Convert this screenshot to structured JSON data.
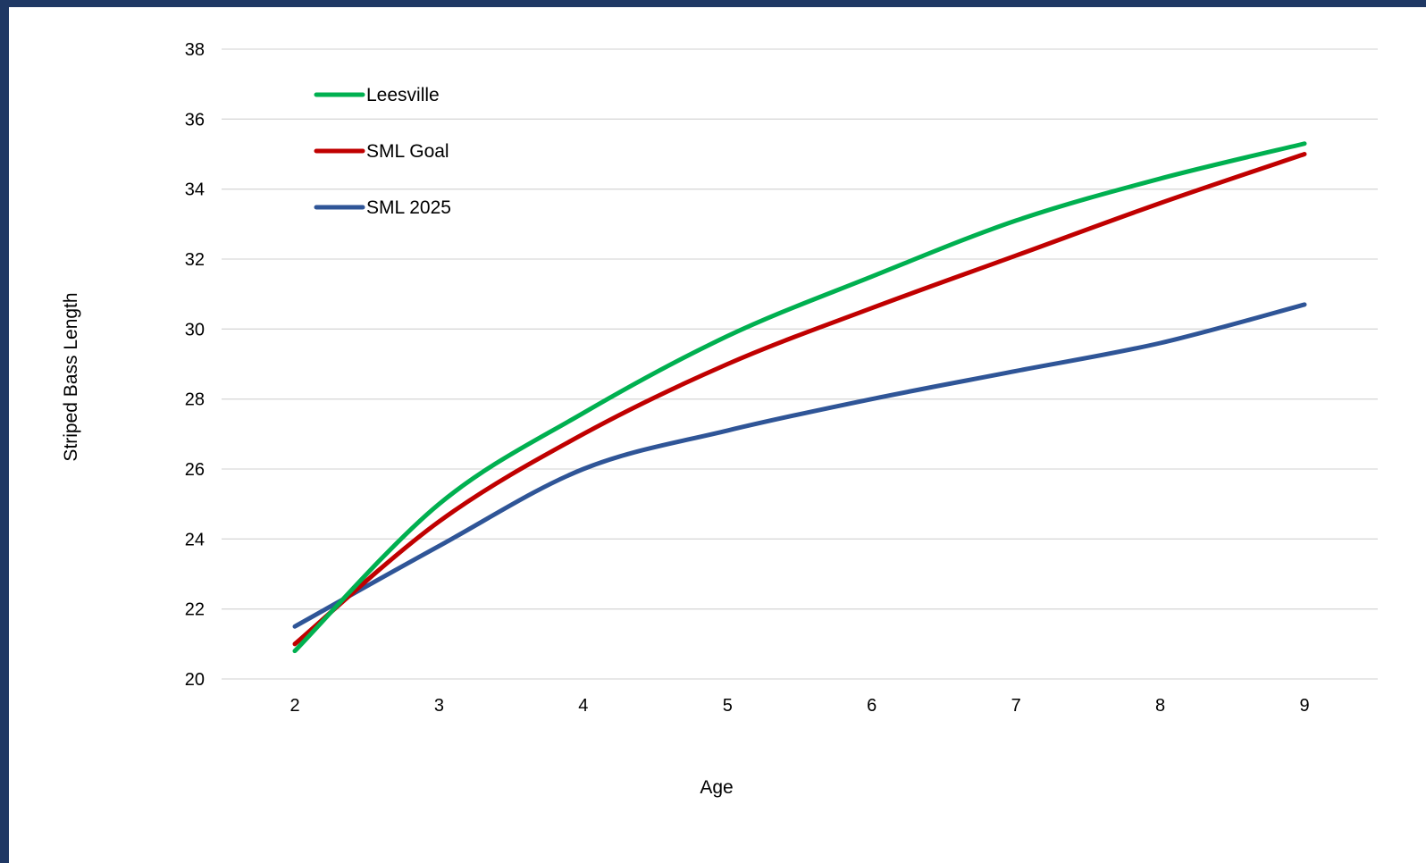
{
  "chart_data": {
    "type": "line",
    "title": "",
    "xlabel": "Age",
    "ylabel": "Striped Bass Length",
    "x": [
      2,
      3,
      4,
      5,
      6,
      7,
      8,
      9
    ],
    "ylim": [
      20,
      38
    ],
    "yticks": [
      20,
      22,
      24,
      26,
      28,
      30,
      32,
      34,
      36,
      38
    ],
    "grid": true,
    "legend_placement": "top-left",
    "smoothed": true,
    "series": [
      {
        "name": "Leesville",
        "color": "#00b050",
        "values": [
          20.8,
          25.0,
          27.6,
          29.8,
          31.5,
          33.1,
          34.3,
          35.3
        ]
      },
      {
        "name": "SML Goal",
        "color": "#c00000",
        "values": [
          21.0,
          24.5,
          27.0,
          29.0,
          30.6,
          32.1,
          33.6,
          35.0
        ]
      },
      {
        "name": "SML 2025",
        "color": "#2f5597",
        "values": [
          21.5,
          23.8,
          26.0,
          27.1,
          28.0,
          28.8,
          29.6,
          30.7
        ]
      }
    ]
  }
}
